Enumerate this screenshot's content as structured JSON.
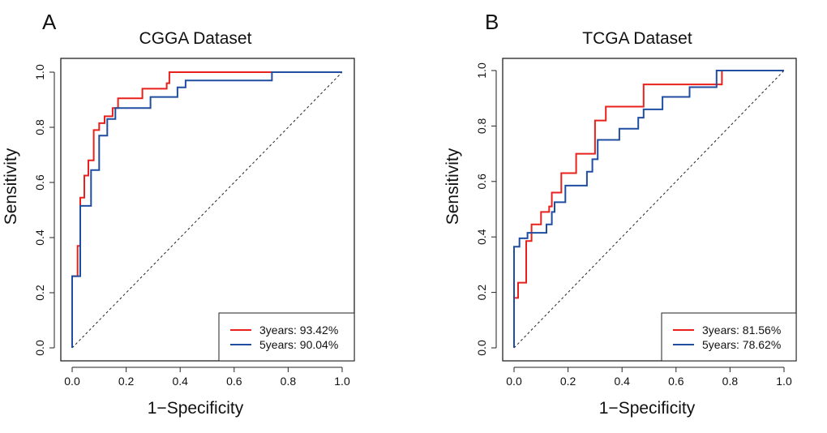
{
  "chart_data": [
    {
      "type": "line",
      "panel_label": "A",
      "title": "CGGA Dataset",
      "xlabel": "1−Specificity",
      "ylabel": "Sensitivity",
      "xlim": [
        0,
        1
      ],
      "ylim": [
        0,
        1
      ],
      "xticks": [
        "0.0",
        "0.2",
        "0.4",
        "0.6",
        "0.8",
        "1.0"
      ],
      "yticks": [
        "0.0",
        "0.2",
        "0.4",
        "0.6",
        "0.8",
        "1.0"
      ],
      "reference_line": "diagonal",
      "legend_position": "bottom-right",
      "series": [
        {
          "name": "3years",
          "auc_label": "3years: 93.42%",
          "color": "#e8211d",
          "x": [
            0,
            0,
            0.02,
            0.02,
            0.03,
            0.03,
            0.045,
            0.045,
            0.06,
            0.06,
            0.08,
            0.08,
            0.1,
            0.1,
            0.12,
            0.12,
            0.15,
            0.15,
            0.17,
            0.17,
            0.26,
            0.26,
            0.35,
            0.35,
            0.36,
            0.36,
            0.75,
            0.75,
            1
          ],
          "y": [
            0,
            0.26,
            0.26,
            0.37,
            0.37,
            0.545,
            0.545,
            0.625,
            0.625,
            0.68,
            0.68,
            0.79,
            0.79,
            0.815,
            0.815,
            0.84,
            0.84,
            0.87,
            0.87,
            0.905,
            0.905,
            0.94,
            0.94,
            0.96,
            0.96,
            1.0,
            1.0,
            1.0,
            1.0
          ]
        },
        {
          "name": "5years",
          "auc_label": "5years: 90.04%",
          "color": "#1f4ea1",
          "x": [
            0,
            0,
            0.03,
            0.03,
            0.07,
            0.07,
            0.1,
            0.1,
            0.13,
            0.13,
            0.16,
            0.16,
            0.29,
            0.29,
            0.39,
            0.39,
            0.42,
            0.42,
            0.74,
            0.74,
            1
          ],
          "y": [
            0,
            0.26,
            0.26,
            0.515,
            0.515,
            0.645,
            0.645,
            0.77,
            0.77,
            0.83,
            0.83,
            0.87,
            0.87,
            0.91,
            0.91,
            0.945,
            0.945,
            0.97,
            0.97,
            1.0,
            1.0
          ]
        }
      ]
    },
    {
      "type": "line",
      "panel_label": "B",
      "title": "TCGA Dataset",
      "xlabel": "1−Specificity",
      "ylabel": "Sensitivity",
      "xlim": [
        0,
        1
      ],
      "ylim": [
        0,
        1
      ],
      "xticks": [
        "0.0",
        "0.2",
        "0.4",
        "0.6",
        "0.8",
        "1.0"
      ],
      "yticks": [
        "0.0",
        "0.2",
        "0.4",
        "0.6",
        "0.8",
        "1.0"
      ],
      "reference_line": "diagonal",
      "legend_position": "bottom-right",
      "series": [
        {
          "name": "3years",
          "auc_label": "3years: 81.56%",
          "color": "#e8211d",
          "x": [
            0,
            0,
            0.015,
            0.015,
            0.045,
            0.045,
            0.065,
            0.065,
            0.1,
            0.1,
            0.13,
            0.13,
            0.14,
            0.14,
            0.175,
            0.175,
            0.23,
            0.23,
            0.3,
            0.3,
            0.34,
            0.34,
            0.48,
            0.48,
            0.77,
            0.77,
            1
          ],
          "y": [
            0,
            0.18,
            0.18,
            0.235,
            0.235,
            0.385,
            0.385,
            0.445,
            0.445,
            0.49,
            0.49,
            0.51,
            0.51,
            0.56,
            0.56,
            0.63,
            0.63,
            0.7,
            0.7,
            0.82,
            0.82,
            0.87,
            0.87,
            0.95,
            0.95,
            1.0,
            1.0
          ]
        },
        {
          "name": "5years",
          "auc_label": "5years: 78.62%",
          "color": "#1f4ea1",
          "x": [
            0,
            0,
            0.02,
            0.02,
            0.05,
            0.05,
            0.12,
            0.12,
            0.14,
            0.14,
            0.15,
            0.15,
            0.19,
            0.19,
            0.27,
            0.27,
            0.29,
            0.29,
            0.31,
            0.31,
            0.39,
            0.39,
            0.46,
            0.46,
            0.48,
            0.48,
            0.55,
            0.55,
            0.65,
            0.65,
            0.75,
            0.75,
            1
          ],
          "y": [
            0,
            0.365,
            0.365,
            0.395,
            0.395,
            0.415,
            0.415,
            0.445,
            0.445,
            0.49,
            0.49,
            0.525,
            0.525,
            0.585,
            0.585,
            0.635,
            0.635,
            0.68,
            0.68,
            0.75,
            0.75,
            0.79,
            0.79,
            0.83,
            0.83,
            0.86,
            0.86,
            0.905,
            0.905,
            0.94,
            0.94,
            1.0,
            1.0
          ]
        }
      ]
    }
  ]
}
